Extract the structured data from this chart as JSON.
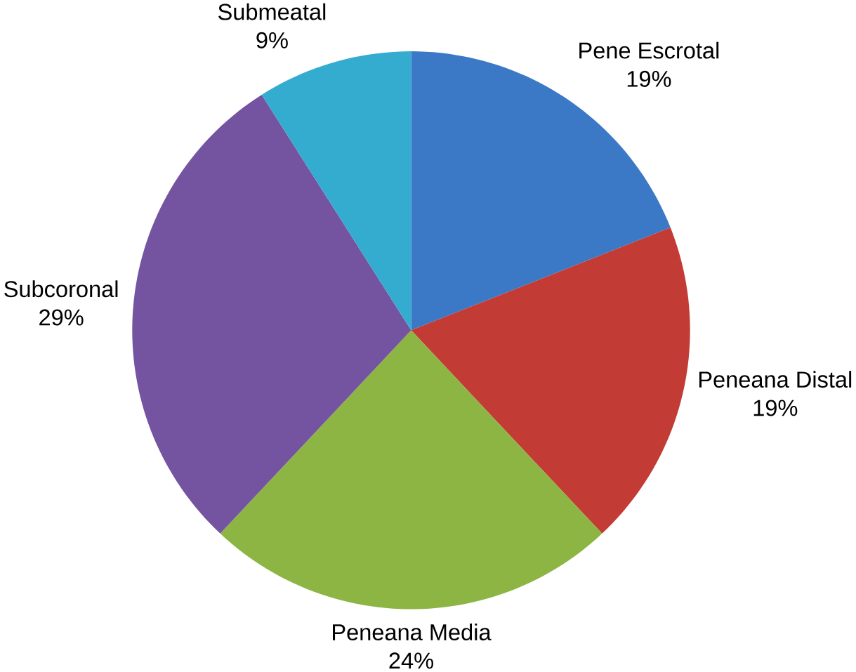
{
  "chart_data": {
    "type": "pie",
    "categories": [
      "Pene Escrotal",
      "Peneana Distal",
      "Peneana Media",
      "Subcoronal",
      "Submeatal"
    ],
    "values": [
      19,
      19,
      24,
      29,
      9
    ],
    "value_labels": [
      "19%",
      "19%",
      "24%",
      "29%",
      "9%"
    ],
    "colors": [
      "#3b78c6",
      "#c33b35",
      "#8cb543",
      "#7453a0",
      "#33acd0"
    ]
  }
}
